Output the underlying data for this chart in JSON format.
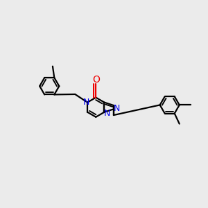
{
  "background_color": "#EBEBEB",
  "bond_color": "#000000",
  "nitrogen_color": "#0000EE",
  "oxygen_color": "#EE0000",
  "lw": 1.6,
  "xlim": [
    -3.2,
    3.2
  ],
  "ylim": [
    -2.5,
    2.8
  ]
}
